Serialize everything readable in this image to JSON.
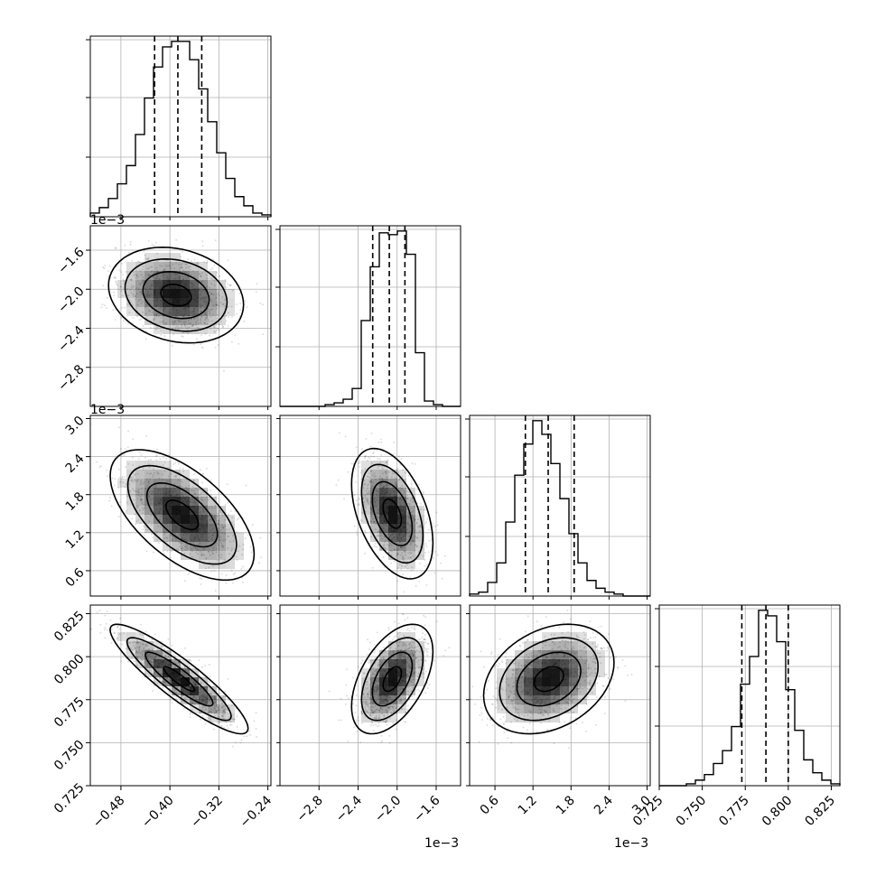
{
  "chart_data": {
    "type": "scatter",
    "variables": [
      {
        "id": "p0",
        "range": [
          -0.53,
          -0.235
        ],
        "ticks": [
          -0.48,
          -0.4,
          -0.32,
          -0.24
        ],
        "tick_labels": [
          "−0.48",
          "−0.40",
          "−0.32",
          "−0.24"
        ],
        "offset_label": "",
        "quantiles": [
          -0.425,
          -0.387,
          -0.348
        ]
      },
      {
        "id": "p1",
        "range": [
          -3.2,
          -1.35
        ],
        "ticks": [
          -2.8,
          -2.4,
          -2.0,
          -1.6
        ],
        "tick_labels": [
          "−2.8",
          "−2.4",
          "−2.0",
          "−1.6"
        ],
        "offset_label": "1e−3",
        "quantiles": [
          -2.25,
          -2.08,
          -1.92
        ]
      },
      {
        "id": "p2",
        "range": [
          0.2,
          3.05
        ],
        "ticks": [
          0.6,
          1.2,
          1.8,
          2.4,
          3.0
        ],
        "tick_labels": [
          "0.6",
          "1.2",
          "1.8",
          "2.4",
          "3.0"
        ],
        "offset_label": "1e−3",
        "quantiles": [
          1.08,
          1.44,
          1.85
        ]
      },
      {
        "id": "p3",
        "range": [
          0.725,
          0.83
        ],
        "ticks": [
          0.725,
          0.75,
          0.775,
          0.8,
          0.825
        ],
        "tick_labels": [
          "0.725",
          "0.750",
          "0.775",
          "0.800",
          "0.825"
        ],
        "offset_label": "",
        "quantiles": [
          0.773,
          0.787,
          0.8
        ]
      }
    ],
    "histograms": [
      {
        "var": "p0",
        "counts": [
          2,
          5,
          10,
          18,
          28,
          45,
          65,
          82,
          93,
          96,
          96,
          86,
          70,
          52,
          35,
          21,
          11,
          6,
          2,
          1
        ]
      },
      {
        "var": "p1",
        "counts": [
          0,
          0,
          0,
          0,
          0,
          1,
          2,
          4,
          10,
          48,
          78,
          97,
          96,
          98,
          85,
          30,
          3,
          1,
          0,
          0
        ]
      },
      {
        "var": "p2",
        "counts": [
          1,
          2,
          7,
          17,
          38,
          62,
          78,
          90,
          83,
          68,
          50,
          32,
          17,
          8,
          4,
          2,
          1,
          0,
          0,
          0
        ]
      },
      {
        "var": "p3",
        "counts": [
          0,
          0,
          0,
          1,
          3,
          6,
          12,
          19,
          32,
          55,
          70,
          95,
          92,
          78,
          52,
          30,
          14,
          7,
          3,
          1
        ]
      }
    ],
    "pairs": [
      {
        "x": "p0",
        "y": "p1",
        "center": [
          -0.39,
          -2.06
        ],
        "sigma": [
          0.045,
          0.2
        ],
        "rho": -0.2
      },
      {
        "x": "p0",
        "y": "p2",
        "center": [
          -0.38,
          1.48
        ],
        "sigma": [
          0.048,
          0.42
        ],
        "rho": -0.6
      },
      {
        "x": "p1",
        "y": "p2",
        "center": [
          -2.05,
          1.5
        ],
        "sigma": [
          0.17,
          0.42
        ],
        "rho": -0.45
      },
      {
        "x": "p0",
        "y": "p3",
        "center": [
          -0.385,
          0.787
        ],
        "sigma": [
          0.046,
          0.013
        ],
        "rho": -0.9
      },
      {
        "x": "p1",
        "y": "p3",
        "center": [
          -2.05,
          0.787
        ],
        "sigma": [
          0.17,
          0.013
        ],
        "rho": 0.5
      },
      {
        "x": "p2",
        "y": "p3",
        "center": [
          1.45,
          0.787
        ],
        "sigma": [
          0.42,
          0.013
        ],
        "rho": 0.3
      }
    ],
    "grid": true
  }
}
